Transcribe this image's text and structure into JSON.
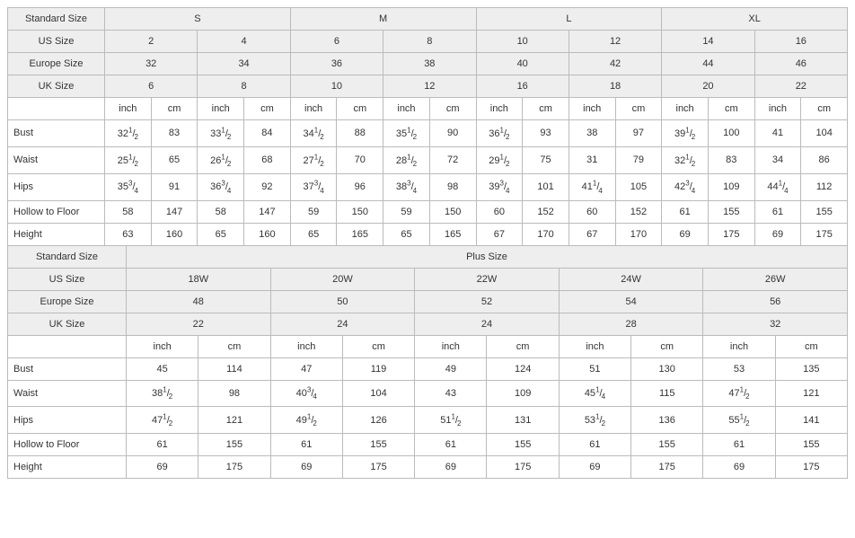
{
  "labels": {
    "standardSize": "Standard Size",
    "usSize": "US Size",
    "europeSize": "Europe Size",
    "ukSize": "UK Size",
    "plusSize": "Plus Size",
    "inch": "inch",
    "cm": "cm",
    "bust": "Bust",
    "waist": "Waist",
    "hips": "Hips",
    "hollow": "Hollow to Floor",
    "height": "Height"
  },
  "t1": {
    "std": [
      "S",
      "M",
      "L",
      "XL"
    ],
    "us": [
      "2",
      "4",
      "6",
      "8",
      "10",
      "12",
      "14",
      "16"
    ],
    "eu": [
      "32",
      "34",
      "36",
      "38",
      "40",
      "42",
      "44",
      "46"
    ],
    "uk": [
      "6",
      "8",
      "10",
      "12",
      "16",
      "18",
      "20",
      "22"
    ],
    "rows": [
      {
        "k": "bust",
        "v": [
          {
            "w": "32",
            "n": "1",
            "d": "2"
          },
          "83",
          {
            "w": "33",
            "n": "1",
            "d": "2"
          },
          "84",
          {
            "w": "34",
            "n": "1",
            "d": "2"
          },
          "88",
          {
            "w": "35",
            "n": "1",
            "d": "2"
          },
          "90",
          {
            "w": "36",
            "n": "1",
            "d": "2"
          },
          "93",
          "38",
          "97",
          {
            "w": "39",
            "n": "1",
            "d": "2"
          },
          "100",
          "41",
          "104"
        ]
      },
      {
        "k": "waist",
        "v": [
          {
            "w": "25",
            "n": "1",
            "d": "2"
          },
          "65",
          {
            "w": "26",
            "n": "1",
            "d": "2"
          },
          "68",
          {
            "w": "27",
            "n": "1",
            "d": "2"
          },
          "70",
          {
            "w": "28",
            "n": "1",
            "d": "2"
          },
          "72",
          {
            "w": "29",
            "n": "1",
            "d": "2"
          },
          "75",
          "31",
          "79",
          {
            "w": "32",
            "n": "1",
            "d": "2"
          },
          "83",
          "34",
          "86"
        ]
      },
      {
        "k": "hips",
        "v": [
          {
            "w": "35",
            "n": "3",
            "d": "4"
          },
          "91",
          {
            "w": "36",
            "n": "3",
            "d": "4"
          },
          "92",
          {
            "w": "37",
            "n": "3",
            "d": "4"
          },
          "96",
          {
            "w": "38",
            "n": "3",
            "d": "4"
          },
          "98",
          {
            "w": "39",
            "n": "3",
            "d": "4"
          },
          "101",
          {
            "w": "41",
            "n": "1",
            "d": "4"
          },
          "105",
          {
            "w": "42",
            "n": "3",
            "d": "4"
          },
          "109",
          {
            "w": "44",
            "n": "1",
            "d": "4"
          },
          "112"
        ]
      },
      {
        "k": "hollow",
        "v": [
          "58",
          "147",
          "58",
          "147",
          "59",
          "150",
          "59",
          "150",
          "60",
          "152",
          "60",
          "152",
          "61",
          "155",
          "61",
          "155"
        ]
      },
      {
        "k": "height",
        "v": [
          "63",
          "160",
          "65",
          "160",
          "65",
          "165",
          "65",
          "165",
          "67",
          "170",
          "67",
          "170",
          "69",
          "175",
          "69",
          "175"
        ]
      }
    ]
  },
  "t2": {
    "us": [
      "18W",
      "20W",
      "22W",
      "24W",
      "26W"
    ],
    "eu": [
      "48",
      "50",
      "52",
      "54",
      "56"
    ],
    "uk": [
      "22",
      "24",
      "24",
      "28",
      "32"
    ],
    "rows": [
      {
        "k": "bust",
        "v": [
          "45",
          "114",
          "47",
          "119",
          "49",
          "124",
          "51",
          "130",
          "53",
          "135"
        ]
      },
      {
        "k": "waist",
        "v": [
          {
            "w": "38",
            "n": "1",
            "d": "2"
          },
          "98",
          {
            "w": "40",
            "n": "3",
            "d": "4"
          },
          "104",
          "43",
          "109",
          {
            "w": "45",
            "n": "1",
            "d": "4"
          },
          "115",
          {
            "w": "47",
            "n": "1",
            "d": "2"
          },
          "121"
        ]
      },
      {
        "k": "hips",
        "v": [
          {
            "w": "47",
            "n": "1",
            "d": "2"
          },
          "121",
          {
            "w": "49",
            "n": "1",
            "d": "2"
          },
          "126",
          {
            "w": "51",
            "n": "1",
            "d": "2"
          },
          "131",
          {
            "w": "53",
            "n": "1",
            "d": "2"
          },
          "136",
          {
            "w": "55",
            "n": "1",
            "d": "2"
          },
          "141"
        ]
      },
      {
        "k": "hollow",
        "v": [
          "61",
          "155",
          "61",
          "155",
          "61",
          "155",
          "61",
          "155",
          "61",
          "155"
        ]
      },
      {
        "k": "height",
        "v": [
          "69",
          "175",
          "69",
          "175",
          "69",
          "175",
          "69",
          "175",
          "69",
          "175"
        ]
      }
    ]
  }
}
